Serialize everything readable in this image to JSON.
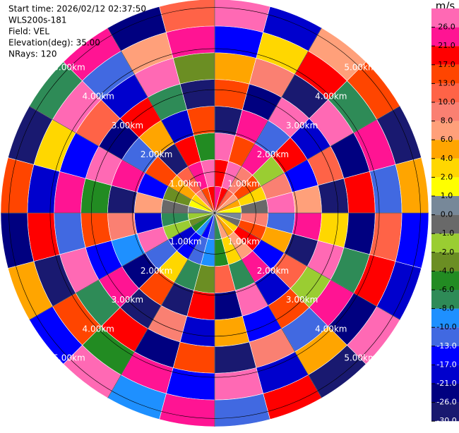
{
  "chart_data": {
    "type": "ppi",
    "header": [
      "Start time: 2026/02/12 02:37:50",
      "WLS200s-181",
      "Field: VEL",
      "Elevation(deg): 35.00",
      "NRays: 120"
    ],
    "colorbar_title": "m/s",
    "levels": [
      -30,
      -26,
      -21,
      -17,
      -13,
      -10,
      -8,
      -6,
      -4,
      -2,
      -1,
      0,
      1,
      2,
      4,
      6,
      8,
      10,
      13,
      17,
      21,
      26
    ],
    "colors": [
      "#191970",
      "#000080",
      "#0000cd",
      "#0000ff",
      "#4169e1",
      "#1e90ff",
      "#2e8b57",
      "#228b22",
      "#6b8e23",
      "#9acd32",
      "#696969",
      "#778899",
      "#ffff00",
      "#ffd700",
      "#ffa500",
      "#ffa07a",
      "#fa8072",
      "#ff6347",
      "#ff4500",
      "#ff0000",
      "#ff1493",
      "#ff69b4"
    ],
    "colorbar_ticks": [
      {
        "value": 26,
        "label": "26.0"
      },
      {
        "value": 21,
        "label": "21.0"
      },
      {
        "value": 17,
        "label": "17.0"
      },
      {
        "value": 13,
        "label": "13.0"
      },
      {
        "value": 10,
        "label": "10.0"
      },
      {
        "value": 8,
        "label": "8.0"
      },
      {
        "value": 6,
        "label": "6.0"
      },
      {
        "value": 4,
        "label": "4.0"
      },
      {
        "value": 2,
        "label": "2.0"
      },
      {
        "value": 1,
        "label": "1.0"
      },
      {
        "value": 0,
        "label": "0.0"
      },
      {
        "value": -1,
        "label": "-1.0"
      },
      {
        "value": -2,
        "label": "-2.0"
      },
      {
        "value": -4,
        "label": "-4.0"
      },
      {
        "value": -6,
        "label": "-6.0"
      },
      {
        "value": -8,
        "label": "-8.0"
      },
      {
        "value": -10,
        "label": "-10.0"
      },
      {
        "value": -13,
        "label": "-13.0"
      },
      {
        "value": -17,
        "label": "-17.0"
      },
      {
        "value": -21,
        "label": "-21.0"
      },
      {
        "value": -26,
        "label": "-26.0"
      },
      {
        "value": -30,
        "label": "-30.0"
      }
    ],
    "range_rings": [
      {
        "value": 1,
        "label": "1.00km"
      },
      {
        "value": 2,
        "label": "2.00km"
      },
      {
        "value": 3,
        "label": "3.00km"
      },
      {
        "value": 4,
        "label": "4.00km"
      },
      {
        "value": 5,
        "label": "5.00km"
      }
    ],
    "range_lim": [
      0,
      5.2
    ],
    "azimuth_bins": [
      0,
      15,
      30,
      45,
      60,
      75,
      90,
      105,
      120,
      135,
      150,
      165,
      180,
      195,
      210,
      225,
      240,
      255,
      270,
      285,
      300,
      315,
      330,
      345,
      360
    ],
    "range_bins": [
      0,
      0.65,
      1.3,
      1.95,
      2.6,
      3.25,
      3.9,
      4.55,
      5.2
    ],
    "values": [
      [
        21,
        17,
        26,
        -30,
        13,
        4,
        -17,
        26
      ],
      [
        17,
        26,
        13,
        21,
        -26,
        8,
        2,
        -21
      ],
      [
        10,
        8,
        21,
        -13,
        26,
        -30,
        17,
        6
      ],
      [
        6,
        13,
        -2,
        17,
        -21,
        26,
        -8,
        13
      ],
      [
        4,
        2,
        8,
        -17,
        10,
        -26,
        21,
        -30
      ],
      [
        1,
        -1,
        26,
        6,
        -30,
        17,
        -13,
        4
      ],
      [
        0,
        8,
        -13,
        21,
        2,
        -26,
        10,
        -17
      ],
      [
        -1,
        13,
        4,
        -30,
        26,
        -8,
        17,
        -21
      ],
      [
        2,
        17,
        -17,
        10,
        -2,
        21,
        -26,
        26
      ],
      [
        4,
        6,
        21,
        -21,
        13,
        -13,
        4,
        -30
      ],
      [
        6,
        2,
        -8,
        26,
        -17,
        8,
        -21,
        17
      ],
      [
        -8,
        -6,
        10,
        -26,
        4,
        -30,
        26,
        -13
      ],
      [
        -13,
        -10,
        -4,
        17,
        -21,
        13,
        -17,
        21
      ],
      [
        -17,
        -13,
        -8,
        -30,
        8,
        -26,
        21,
        -10
      ],
      [
        -10,
        -17,
        2,
        13,
        -30,
        17,
        -6,
        26
      ],
      [
        -6,
        -21,
        -13,
        -26,
        21,
        -8,
        13,
        -17
      ],
      [
        -4,
        -2,
        26,
        -10,
        -17,
        26,
        -30,
        4
      ],
      [
        -2,
        -8,
        -21,
        8,
        13,
        -13,
        17,
        -26
      ],
      [
        0,
        -1,
        6,
        -30,
        -6,
        21,
        -21,
        13
      ],
      [
        1,
        -4,
        -17,
        21,
        26,
        -17,
        2,
        -30
      ],
      [
        2,
        4,
        13,
        -13,
        -26,
        10,
        26,
        -8
      ],
      [
        8,
        10,
        -30,
        4,
        17,
        -21,
        -13,
        21
      ],
      [
        13,
        21,
        17,
        -21,
        -8,
        26,
        6,
        -26
      ],
      [
        17,
        26,
        -6,
        13,
        -30,
        -4,
        21,
        10
      ]
    ]
  }
}
